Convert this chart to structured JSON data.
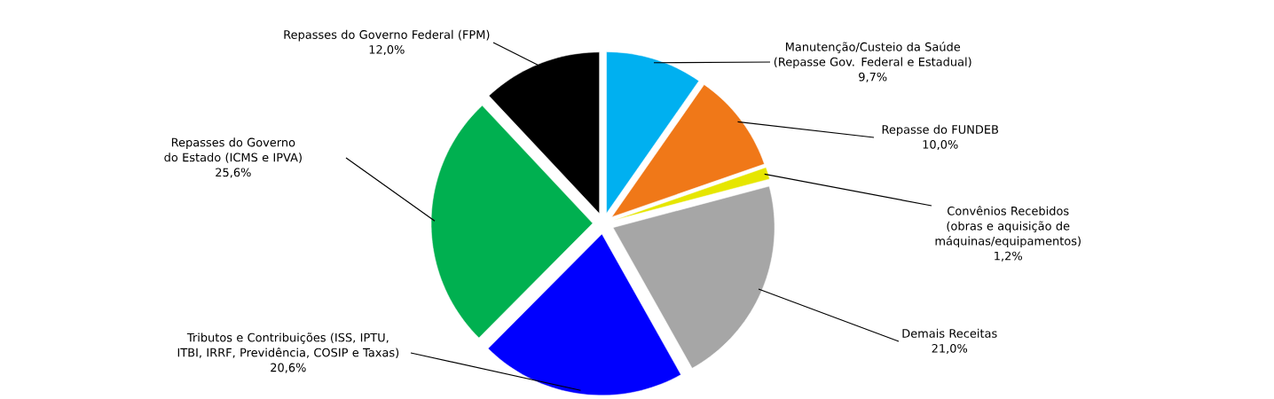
{
  "chart_data": {
    "type": "pie",
    "categories": [
      "Manutenção/Custeio da Saúde (Repasse Gov. Federal e Estadual)",
      "Repasse do FUNDEB",
      "Convênios Recebidos (obras e aquisição de máquinas/equipamentos)",
      "Demais Receitas",
      "Tributos e Contribuições (ISS, IPTU, ITBI, IRRF, Previdência, COSIP e Taxas)",
      "Repasses do Governo do Estado (ICMS e IPVA)",
      "Repasses do Governo Federal (FPM)"
    ],
    "values": [
      9.7,
      10.0,
      1.2,
      21.0,
      20.6,
      25.6,
      12.0
    ],
    "value_labels": [
      "9,7%",
      "10,0%",
      "1,2%",
      "21,0%",
      "20,6%",
      "25,6%",
      "12,0%"
    ],
    "colors": [
      "#00b0f0",
      "#f07818",
      "#e6e600",
      "#a6a6a6",
      "#0000ff",
      "#00b050",
      "#000000"
    ]
  }
}
